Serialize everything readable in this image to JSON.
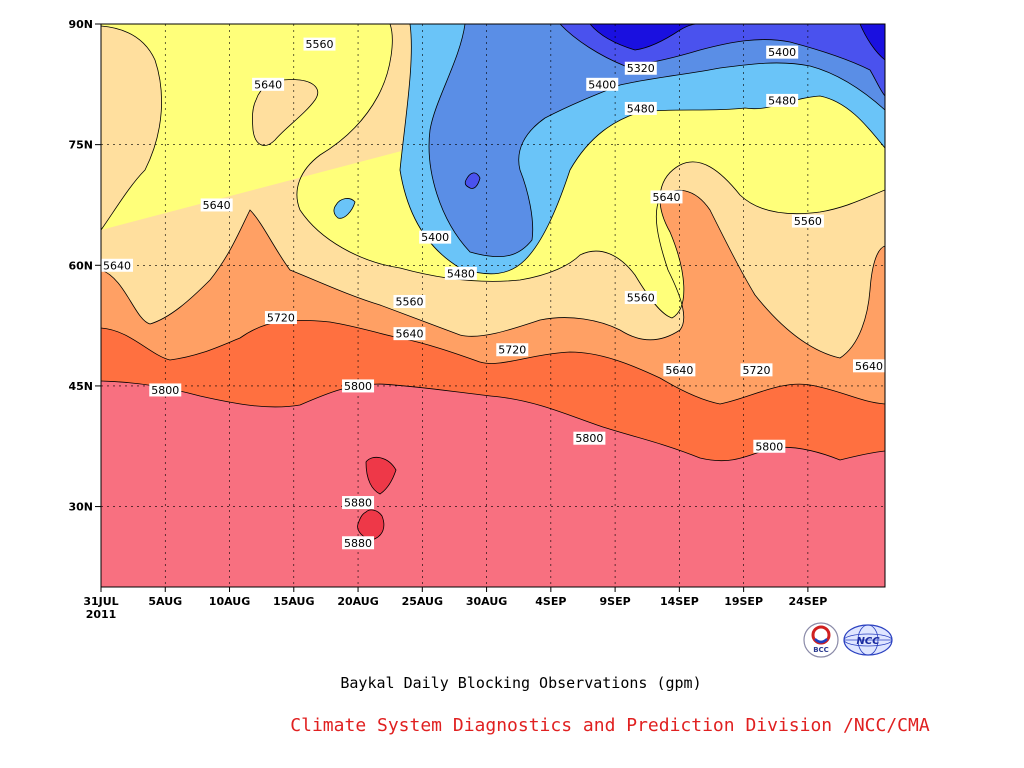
{
  "chart_data": {
    "type": "contour",
    "title": "Baykal Daily Blocking Observations (gpm)",
    "credit": "Climate System Diagnostics and Prediction Division /NCC/CMA",
    "logos": [
      "BCC",
      "NCC"
    ],
    "x_ticks": [
      "31JUL",
      "5AUG",
      "10AUG",
      "15AUG",
      "20AUG",
      "25AUG",
      "30AUG",
      "4SEP",
      "9SEP",
      "14SEP",
      "19SEP",
      "24SEP"
    ],
    "x_year": "2011",
    "y_ticks": [
      "90N",
      "75N",
      "60N",
      "45N",
      "30N"
    ],
    "y_values": [
      90,
      75,
      60,
      45,
      30
    ],
    "ylim": [
      20,
      90
    ],
    "grid": true,
    "contour_levels": [
      5320,
      5400,
      5480,
      5560,
      5640,
      5720,
      5800,
      5880
    ],
    "level_colors": {
      "below_5320": "#1a10e0",
      "5320_5400": "#4a52ee",
      "5400_5480": "#5a8ee6",
      "5480_5560": "#6ac4f8",
      "5560_5640": "#ffff7a",
      "5640_5720": "#ffdf9e",
      "5720_5800": "#ffa064",
      "5800_5880": "#ff7040",
      "5880_5960": "#f87080",
      "above_5880": "#ee3848"
    },
    "contour_labels": [
      {
        "text": "5560",
        "date": "2011-08-17",
        "lat": 87.5
      },
      {
        "text": "5640",
        "date": "2011-08-13",
        "lat": 82.5
      },
      {
        "text": "5640",
        "date": "2011-08-09",
        "lat": 67.5
      },
      {
        "text": "5640",
        "date": "2011-07-31",
        "lat": 60.0
      },
      {
        "text": "5720",
        "date": "2011-08-14",
        "lat": 53.5
      },
      {
        "text": "5800",
        "date": "2011-08-05",
        "lat": 44.5
      },
      {
        "text": "5800",
        "date": "2011-08-20",
        "lat": 45.0
      },
      {
        "text": "5880",
        "date": "2011-08-20",
        "lat": 30.5
      },
      {
        "text": "5880",
        "date": "2011-08-20",
        "lat": 25.5
      },
      {
        "text": "5400",
        "date": "2011-08-26",
        "lat": 63.5
      },
      {
        "text": "5480",
        "date": "2011-08-28",
        "lat": 59.0
      },
      {
        "text": "5560",
        "date": "2011-08-24",
        "lat": 55.5
      },
      {
        "text": "5640",
        "date": "2011-08-24",
        "lat": 51.5
      },
      {
        "text": "5720",
        "date": "2011-09-01",
        "lat": 49.5
      },
      {
        "text": "5800",
        "date": "2011-09-07",
        "lat": 38.5
      },
      {
        "text": "5320",
        "date": "2011-09-11",
        "lat": 84.5
      },
      {
        "text": "5400",
        "date": "2011-09-08",
        "lat": 82.5
      },
      {
        "text": "5480",
        "date": "2011-09-11",
        "lat": 79.5
      },
      {
        "text": "5640",
        "date": "2011-09-13",
        "lat": 68.5
      },
      {
        "text": "5560",
        "date": "2011-09-11",
        "lat": 56.0
      },
      {
        "text": "5640",
        "date": "2011-09-14",
        "lat": 47.0
      },
      {
        "text": "5720",
        "date": "2011-09-20",
        "lat": 47.0
      },
      {
        "text": "5800",
        "date": "2011-09-21",
        "lat": 37.5
      },
      {
        "text": "5400",
        "date": "2011-09-22",
        "lat": 86.5
      },
      {
        "text": "5480",
        "date": "2011-09-22",
        "lat": 80.5
      },
      {
        "text": "5560",
        "date": "2011-09-24",
        "lat": 65.5
      },
      {
        "text": "5640",
        "date": "2011-09-30",
        "lat": 47.5
      }
    ]
  }
}
